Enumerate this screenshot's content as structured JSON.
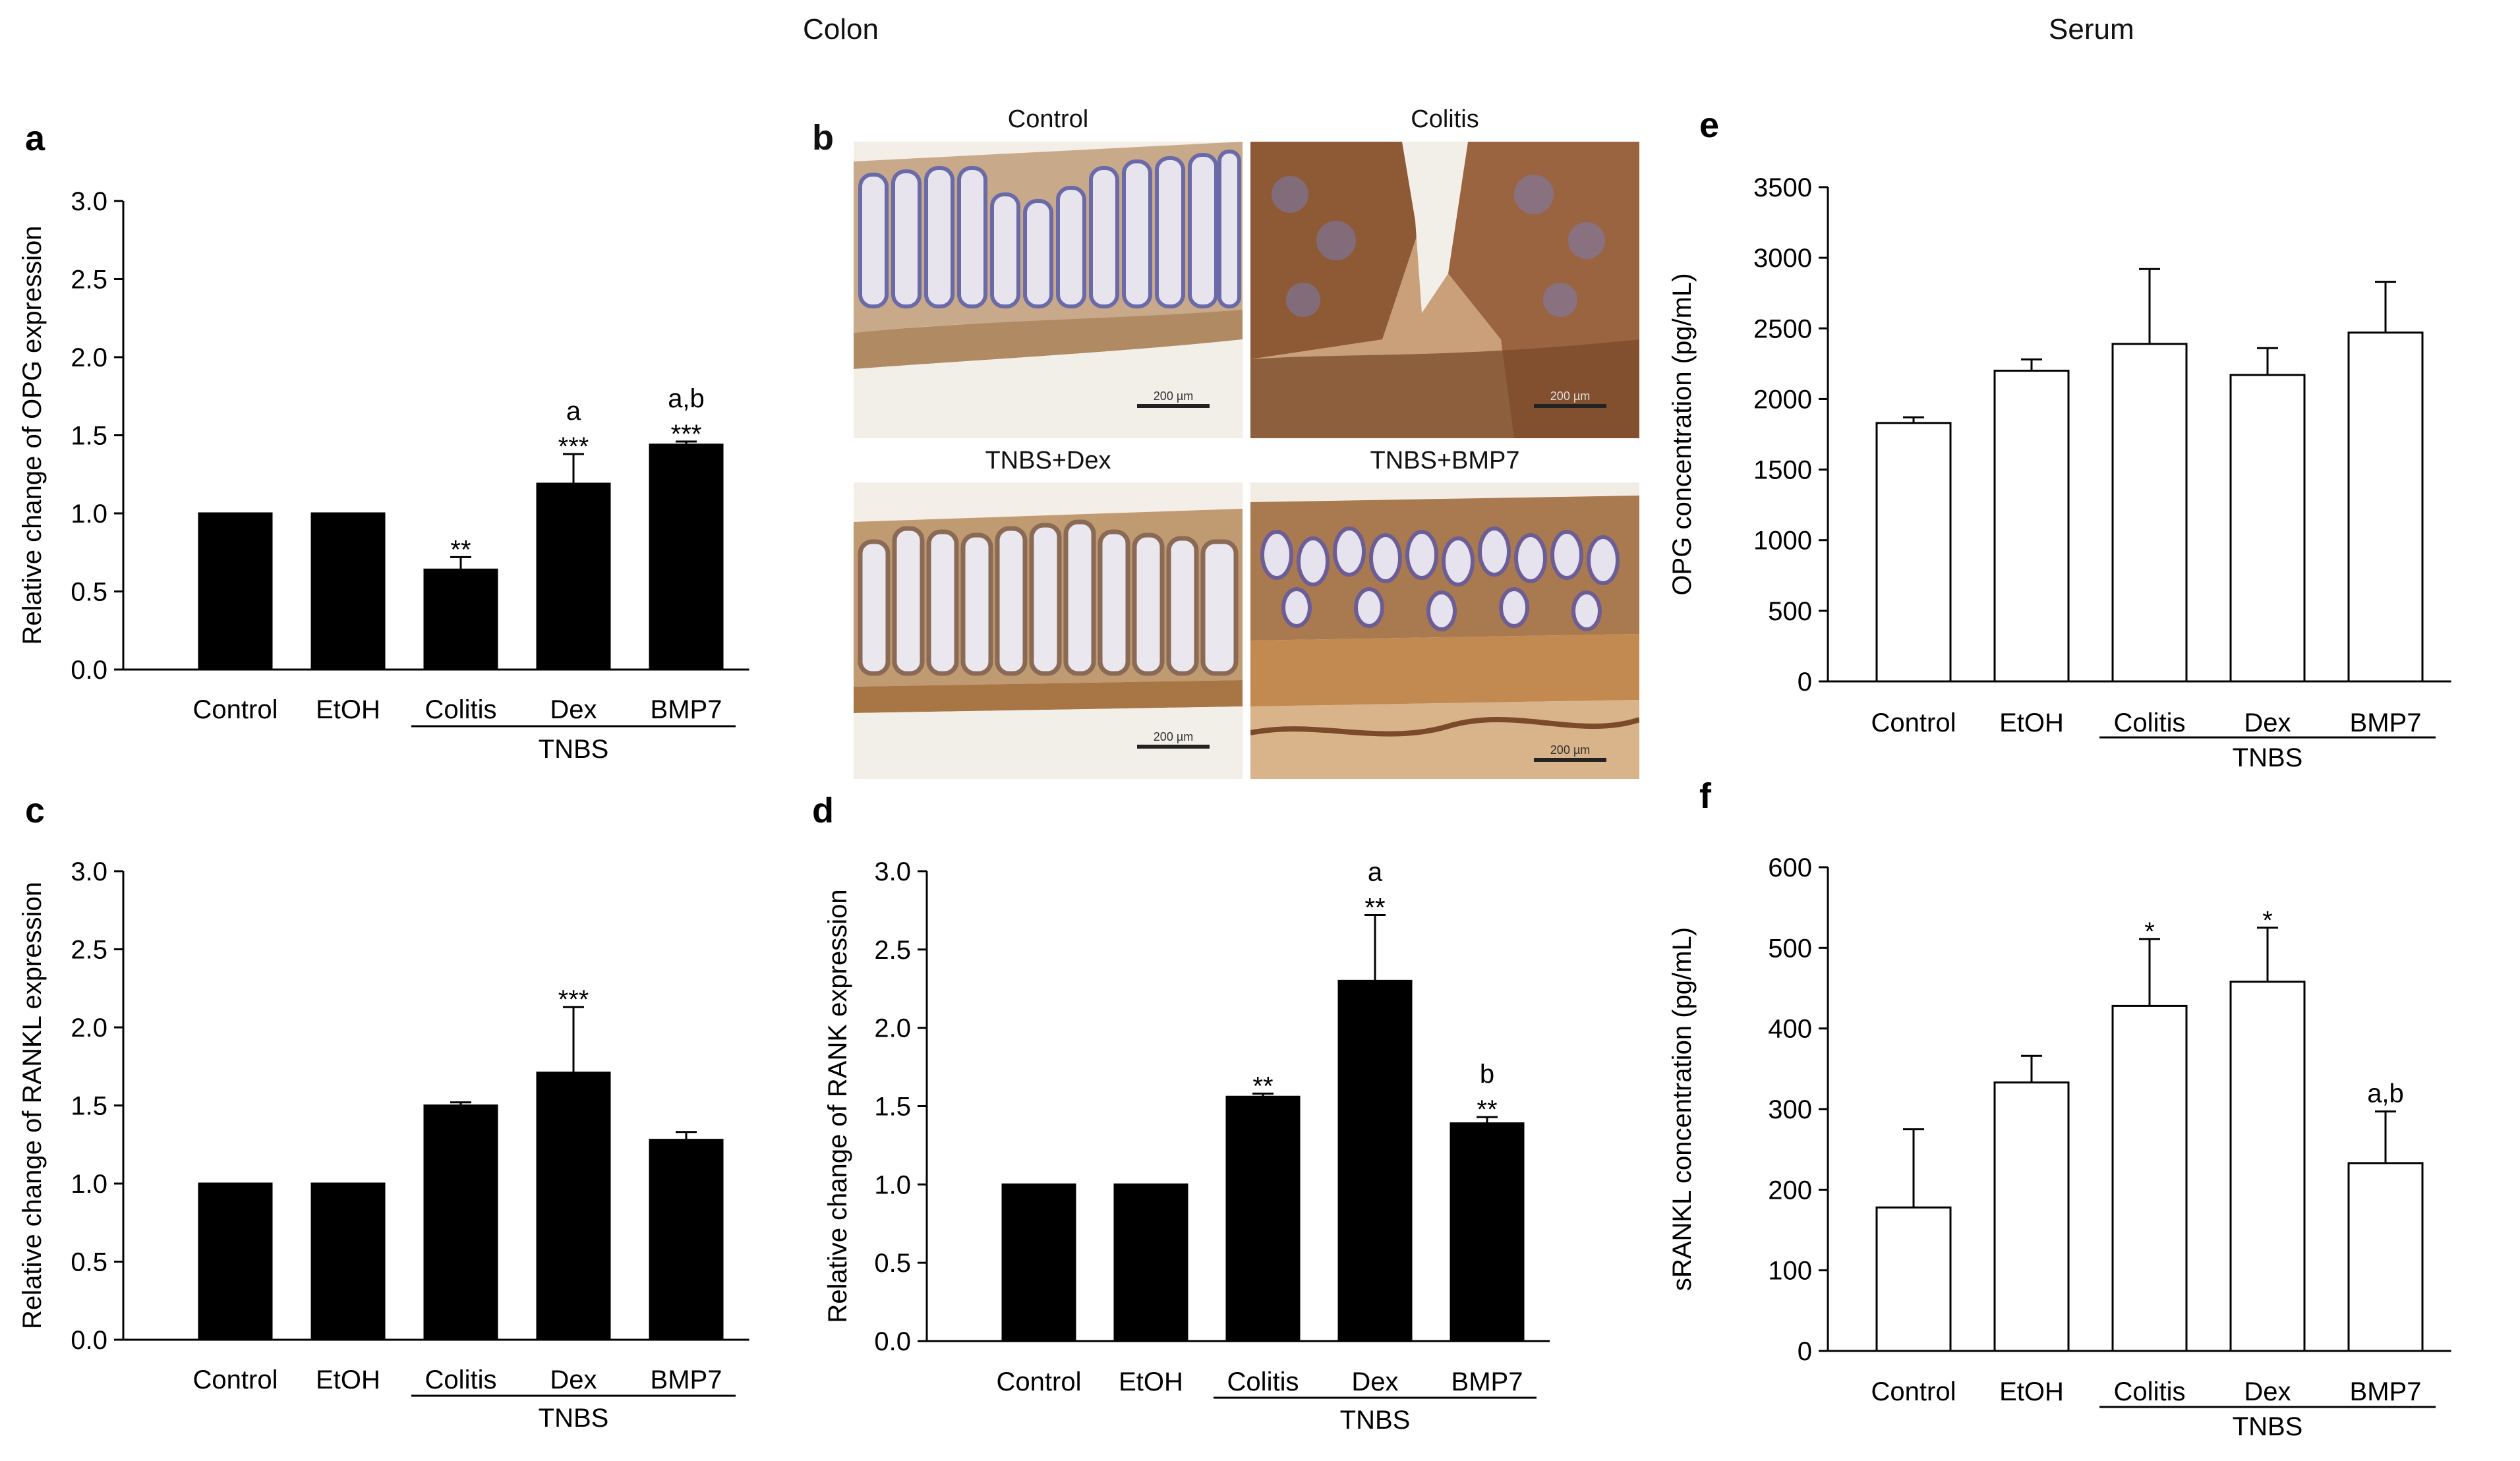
{
  "figure": {
    "section_titles": {
      "colon": "Colon",
      "serum": "Serum"
    },
    "panel_b": {
      "letter": "b",
      "images": [
        {
          "title": "Control",
          "scale_bar": "200 µm"
        },
        {
          "title": "Colitis",
          "scale_bar": "200 µm"
        },
        {
          "title": "TNBS+Dex",
          "scale_bar": "200 µm"
        },
        {
          "title": "TNBS+BMP7",
          "scale_bar": "200 µm"
        }
      ]
    }
  },
  "colors": {
    "bar_fill_colon": "#000000",
    "bar_fill_serum": "#ffffff",
    "axis": "#000000",
    "tissue_stain": "#8b5a2b",
    "nuclei": "#5a5f9a"
  },
  "chart_data": [
    {
      "id": "a",
      "letter": "a",
      "type": "bar",
      "categories": [
        "Control",
        "EtOH",
        "Colitis",
        "Dex",
        "BMP7"
      ],
      "values": [
        1.0,
        1.0,
        0.64,
        1.19,
        1.44
      ],
      "errors": [
        0,
        0,
        0.08,
        0.19,
        0.02
      ],
      "annotations": [
        [],
        [],
        [
          "**"
        ],
        [
          "a",
          "***"
        ],
        [
          "a,b",
          "***"
        ]
      ],
      "group_label": "TNBS",
      "group_start": 2,
      "group_end": 4,
      "ylabel": "Relative change of OPG expression",
      "ylim": [
        0,
        3.0
      ],
      "yticks": [
        "0.0",
        "0.5",
        "1.0",
        "1.5",
        "2.0",
        "2.5",
        "3.0"
      ],
      "fill": "black"
    },
    {
      "id": "c",
      "letter": "c",
      "type": "bar",
      "categories": [
        "Control",
        "EtOH",
        "Colitis",
        "Dex",
        "BMP7"
      ],
      "values": [
        1.0,
        1.0,
        1.5,
        1.71,
        1.28
      ],
      "errors": [
        0,
        0,
        0.02,
        0.42,
        0.05
      ],
      "annotations": [
        [],
        [],
        [],
        [
          "***"
        ],
        []
      ],
      "group_label": "TNBS",
      "group_start": 2,
      "group_end": 4,
      "ylabel": "Relative change of RANKL expression",
      "ylim": [
        0,
        3.0
      ],
      "yticks": [
        "0.0",
        "0.5",
        "1.0",
        "1.5",
        "2.0",
        "2.5",
        "3.0"
      ],
      "fill": "black"
    },
    {
      "id": "d",
      "letter": "d",
      "type": "bar",
      "categories": [
        "Control",
        "EtOH",
        "Colitis",
        "Dex",
        "BMP7"
      ],
      "values": [
        1.0,
        1.0,
        1.56,
        2.3,
        1.39
      ],
      "errors": [
        0,
        0,
        0.02,
        0.42,
        0.04
      ],
      "annotations": [
        [],
        [],
        [
          "**"
        ],
        [
          "a",
          "**"
        ],
        [
          "b",
          "**"
        ]
      ],
      "group_label": "TNBS",
      "group_start": 2,
      "group_end": 4,
      "ylabel": "Relative change of RANK expression",
      "ylim": [
        0,
        3.0
      ],
      "yticks": [
        "0.0",
        "0.5",
        "1.0",
        "1.5",
        "2.0",
        "2.5",
        "3.0"
      ],
      "fill": "black"
    },
    {
      "id": "e",
      "letter": "e",
      "type": "bar",
      "categories": [
        "Control",
        "EtOH",
        "Colitis",
        "Dex",
        "BMP7"
      ],
      "values": [
        1830,
        2200,
        2390,
        2170,
        2470
      ],
      "errors": [
        40,
        80,
        530,
        190,
        360
      ],
      "annotations": [
        [],
        [],
        [],
        [],
        []
      ],
      "group_label": "TNBS",
      "group_start": 2,
      "group_end": 4,
      "ylabel": "OPG concentration (pg/mL)",
      "ylim": [
        0,
        3500
      ],
      "yticks": [
        "0",
        "500",
        "1000",
        "1500",
        "2000",
        "2500",
        "3000",
        "3500"
      ],
      "fill": "white"
    },
    {
      "id": "f",
      "letter": "f",
      "type": "bar",
      "categories": [
        "Control",
        "EtOH",
        "Colitis",
        "Dex",
        "BMP7"
      ],
      "values": [
        178,
        333,
        428,
        458,
        233
      ],
      "errors": [
        97,
        33,
        83,
        67,
        64
      ],
      "annotations": [
        [],
        [],
        [
          "*"
        ],
        [
          "*"
        ],
        [
          "a,b"
        ]
      ],
      "group_label": "TNBS",
      "group_start": 2,
      "group_end": 4,
      "ylabel": "sRANKL concentration (pg/mL)",
      "ylim": [
        0,
        600
      ],
      "yticks": [
        "0",
        "100",
        "200",
        "300",
        "400",
        "500",
        "600"
      ],
      "fill": "white"
    }
  ]
}
